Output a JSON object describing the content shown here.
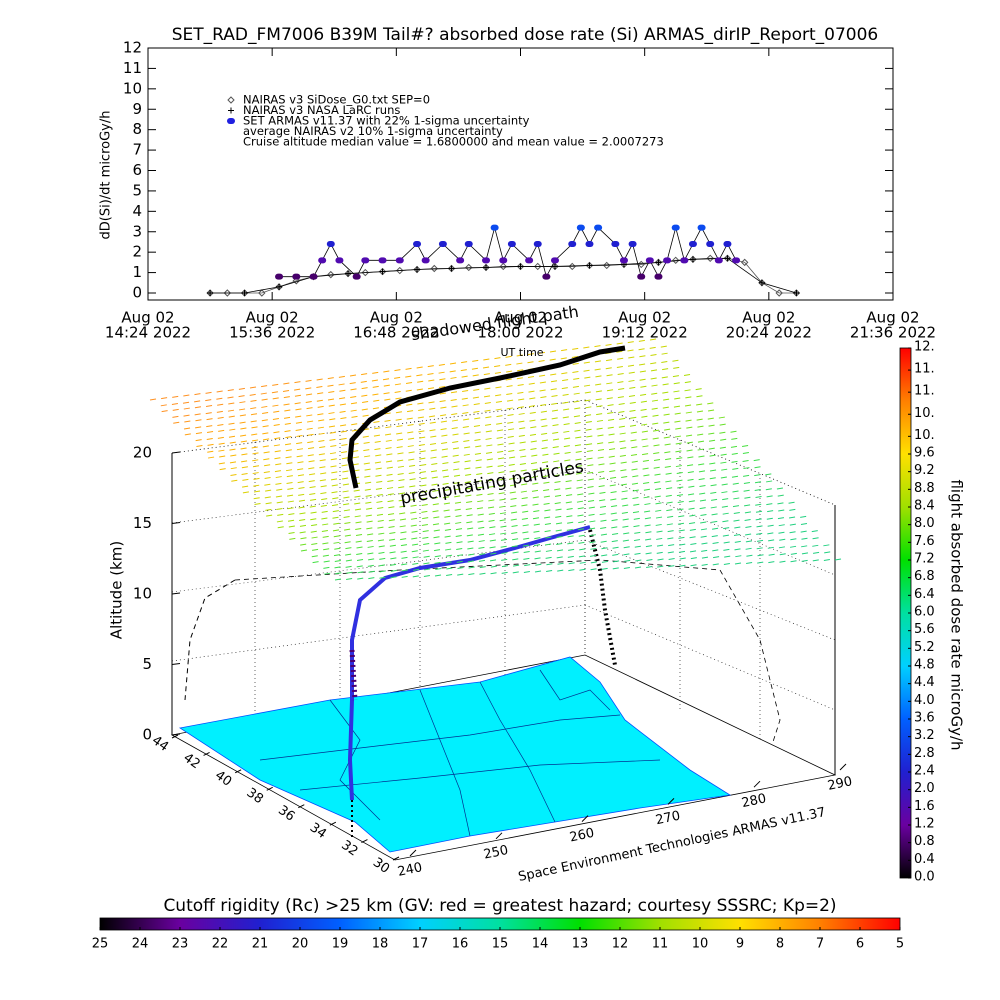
{
  "chart_data": [
    {
      "type": "scatter",
      "title": "SET_RAD_FM7006  B39M Tail#? absorbed dose rate (Si) ARMAS_dirIP_Report_07006",
      "y_label": "dD(Si)/dt microGy/h",
      "ylim": [
        0,
        12
      ],
      "yticks": [
        0,
        1,
        2,
        3,
        4,
        5,
        6,
        7,
        8,
        9,
        10,
        11,
        12
      ],
      "xlim": [
        "2022-08-02 14:24",
        "2022-08-02 21:36"
      ],
      "xticks": [
        {
          "value": "2022-08-02 14:24",
          "label": [
            "Aug 02",
            "14:24 2022"
          ]
        },
        {
          "value": "2022-08-02 15:36",
          "label": [
            "Aug 02",
            "15:36 2022"
          ]
        },
        {
          "value": "2022-08-02 16:48",
          "label": [
            "Aug 02",
            "16:48 2022"
          ]
        },
        {
          "value": "2022-08-02 18:00",
          "label": [
            "Aug 02",
            "18:00 2022"
          ]
        },
        {
          "value": "2022-08-02 19:12",
          "label": [
            "Aug 02",
            "19:12 2022"
          ]
        },
        {
          "value": "2022-08-02 20:24",
          "label": [
            "Aug 02",
            "20:24 2022"
          ]
        },
        {
          "value": "2022-08-02 21:36",
          "label": [
            "Aug 02",
            "21:36 2022"
          ]
        }
      ],
      "series": [
        {
          "name": "NAIRAS v3 SiDose_G0.txt SEP=0",
          "color": "#555555",
          "marker": "diamond",
          "x": [
            "2022-08-02 15:00",
            "2022-08-02 15:10",
            "2022-08-02 15:20",
            "2022-08-02 15:30",
            "2022-08-02 15:40",
            "2022-08-02 15:50",
            "2022-08-02 16:00",
            "2022-08-02 16:10",
            "2022-08-02 16:20",
            "2022-08-02 16:30",
            "2022-08-02 16:40",
            "2022-08-02 16:50",
            "2022-08-02 17:00",
            "2022-08-02 17:10",
            "2022-08-02 17:20",
            "2022-08-02 17:30",
            "2022-08-02 17:40",
            "2022-08-02 17:50",
            "2022-08-02 18:00",
            "2022-08-02 18:10",
            "2022-08-02 18:20",
            "2022-08-02 18:30",
            "2022-08-02 18:40",
            "2022-08-02 18:50",
            "2022-08-02 19:00",
            "2022-08-02 19:10",
            "2022-08-02 19:20",
            "2022-08-02 19:30",
            "2022-08-02 19:40",
            "2022-08-02 19:50",
            "2022-08-02 20:00",
            "2022-08-02 20:10",
            "2022-08-02 20:20",
            "2022-08-02 20:30",
            "2022-08-02 20:40"
          ],
          "values": [
            0,
            0,
            0,
            0,
            0.3,
            0.6,
            0.8,
            0.9,
            0.95,
            1.0,
            1.05,
            1.1,
            1.15,
            1.2,
            1.2,
            1.25,
            1.25,
            1.3,
            1.3,
            1.3,
            1.3,
            1.3,
            1.35,
            1.35,
            1.4,
            1.4,
            1.5,
            1.6,
            1.65,
            1.7,
            1.7,
            1.5,
            0.5,
            0,
            0
          ]
        },
        {
          "name": "NAIRAS v3 NASA LaRC runs",
          "color": "#000000",
          "marker": "plus",
          "x": [
            "2022-08-02 15:00",
            "2022-08-02 15:20",
            "2022-08-02 15:40",
            "2022-08-02 16:00",
            "2022-08-02 16:20",
            "2022-08-02 16:40",
            "2022-08-02 17:00",
            "2022-08-02 17:20",
            "2022-08-02 17:40",
            "2022-08-02 18:00",
            "2022-08-02 18:20",
            "2022-08-02 18:40",
            "2022-08-02 19:00",
            "2022-08-02 19:20",
            "2022-08-02 19:40",
            "2022-08-02 20:00",
            "2022-08-02 20:20",
            "2022-08-02 20:40"
          ],
          "values": [
            0,
            0,
            0.3,
            0.8,
            0.95,
            1.05,
            1.15,
            1.2,
            1.25,
            1.3,
            1.3,
            1.35,
            1.4,
            1.5,
            1.65,
            1.7,
            0.5,
            0
          ]
        },
        {
          "name": "SET ARMAS v11.37 with 22% 1-sigma uncertainty",
          "color": "#2020e0",
          "marker": "dot",
          "color_by_value": true,
          "x": [
            "2022-08-02 15:40",
            "2022-08-02 15:50",
            "2022-08-02 16:00",
            "2022-08-02 16:05",
            "2022-08-02 16:10",
            "2022-08-02 16:15",
            "2022-08-02 16:25",
            "2022-08-02 16:30",
            "2022-08-02 16:40",
            "2022-08-02 16:50",
            "2022-08-02 17:00",
            "2022-08-02 17:05",
            "2022-08-02 17:15",
            "2022-08-02 17:25",
            "2022-08-02 17:30",
            "2022-08-02 17:40",
            "2022-08-02 17:45",
            "2022-08-02 17:50",
            "2022-08-02 17:55",
            "2022-08-02 18:05",
            "2022-08-02 18:10",
            "2022-08-02 18:15",
            "2022-08-02 18:20",
            "2022-08-02 18:30",
            "2022-08-02 18:35",
            "2022-08-02 18:40",
            "2022-08-02 18:45",
            "2022-08-02 18:55",
            "2022-08-02 19:00",
            "2022-08-02 19:05",
            "2022-08-02 19:10",
            "2022-08-02 19:15",
            "2022-08-02 19:20",
            "2022-08-02 19:25",
            "2022-08-02 19:30",
            "2022-08-02 19:35",
            "2022-08-02 19:40",
            "2022-08-02 19:45",
            "2022-08-02 19:50",
            "2022-08-02 19:55",
            "2022-08-02 20:00",
            "2022-08-02 20:05"
          ],
          "values": [
            0.8,
            0.8,
            0.8,
            1.6,
            2.4,
            1.6,
            0.8,
            1.6,
            1.6,
            1.6,
            2.4,
            1.6,
            2.4,
            1.6,
            2.4,
            1.6,
            3.2,
            1.6,
            2.4,
            1.6,
            2.4,
            0.8,
            1.6,
            2.4,
            3.2,
            2.4,
            3.2,
            2.4,
            1.6,
            2.4,
            0.8,
            1.6,
            0.8,
            1.6,
            3.2,
            1.6,
            2.4,
            3.2,
            2.4,
            1.6,
            2.4,
            1.6
          ]
        }
      ],
      "notes": [
        "average NAIRAS v2 10% 1-sigma uncertainty",
        "Cruise altitude median value = 1.6800000 and mean value = 2.0007273"
      ],
      "x_label": "UT time"
    },
    {
      "type": "perspective3d",
      "y_label": "Altitude (km)",
      "ylim": [
        0,
        20
      ],
      "yticks": [
        0,
        5,
        10,
        15,
        20
      ],
      "lat_ticks": [
        44,
        42,
        40,
        38,
        36,
        34,
        32,
        30
      ],
      "lon_ticks": [
        240,
        250,
        260,
        270,
        280,
        290
      ],
      "annotations": [
        "shadowed flight path",
        "precipitating particles"
      ],
      "credit": "Space Environment Technologies ARMAS v11.37"
    },
    {
      "type": "colorbar",
      "orientation": "vertical",
      "label": "flight absorbed dose rate microGy/h",
      "colormap": [
        "#000000",
        "#6a00a0",
        "#2020d0",
        "#0060ff",
        "#00d0ff",
        "#00e0a0",
        "#00e000",
        "#a0e000",
        "#ffe000",
        "#ff8000",
        "#ff0000"
      ],
      "ylim": [
        0,
        12
      ],
      "yticks": [
        {
          "value": 0,
          "label": "0.0"
        },
        0.4,
        0.8,
        1.2,
        1.6,
        {
          "value": 2,
          "label": "2.0"
        },
        2.4,
        2.8,
        3.2,
        3.6,
        {
          "value": 4,
          "label": "4.0"
        },
        4.4,
        4.8,
        5.2,
        5.6,
        {
          "value": 6,
          "label": "6.0"
        },
        6.4,
        6.8,
        7.2,
        7.6,
        {
          "value": 8,
          "label": "8.0"
        },
        8.4,
        8.8,
        9.2,
        9.6,
        {
          "value": 10,
          "label": "10."
        },
        {
          "value": 10.5,
          "label": "10."
        },
        {
          "value": 11,
          "label": "11."
        },
        {
          "value": 11.5,
          "label": "11."
        },
        {
          "value": 12,
          "label": "12."
        }
      ]
    },
    {
      "type": "colorbar",
      "orientation": "horizontal",
      "title": "Cutoff rigidity (Rc) >25 km (GV: red = greatest hazard; courtesy SSSRC; Kp=2)",
      "colormap": [
        "#000000",
        "#6a00a0",
        "#2020d0",
        "#0060ff",
        "#00d0ff",
        "#00e0a0",
        "#00e000",
        "#a0e000",
        "#ffe000",
        "#ff8000",
        "#ff0000"
      ],
      "xlim": [
        25,
        5
      ],
      "xticks": [
        25,
        24,
        23,
        22,
        21,
        20,
        19,
        18,
        17,
        16,
        15,
        14,
        13,
        12,
        11,
        10,
        9,
        8,
        7,
        6,
        5
      ]
    }
  ]
}
